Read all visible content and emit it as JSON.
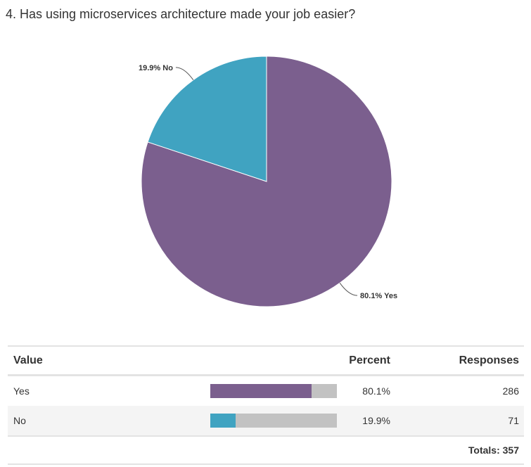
{
  "title": "4. Has using microservices architecture made your job easier?",
  "chart_data": {
    "type": "pie",
    "title": "4. Has using microservices architecture made your job easier?",
    "categories": [
      "Yes",
      "No"
    ],
    "values": [
      80.1,
      19.9
    ],
    "labels": [
      "80.1% Yes",
      "19.9% No"
    ],
    "colors": [
      "#7b5f8e",
      "#40a3c1"
    ]
  },
  "table": {
    "headers": {
      "value": "Value",
      "percent": "Percent",
      "responses": "Responses"
    },
    "rows": [
      {
        "value": "Yes",
        "percent_value": 80.1,
        "percent": "80.1%",
        "responses": "286",
        "color": "#7b5f8e"
      },
      {
        "value": "No",
        "percent_value": 19.9,
        "percent": "19.9%",
        "responses": "71",
        "color": "#40a3c1"
      }
    ],
    "totals": "Totals: 357"
  }
}
